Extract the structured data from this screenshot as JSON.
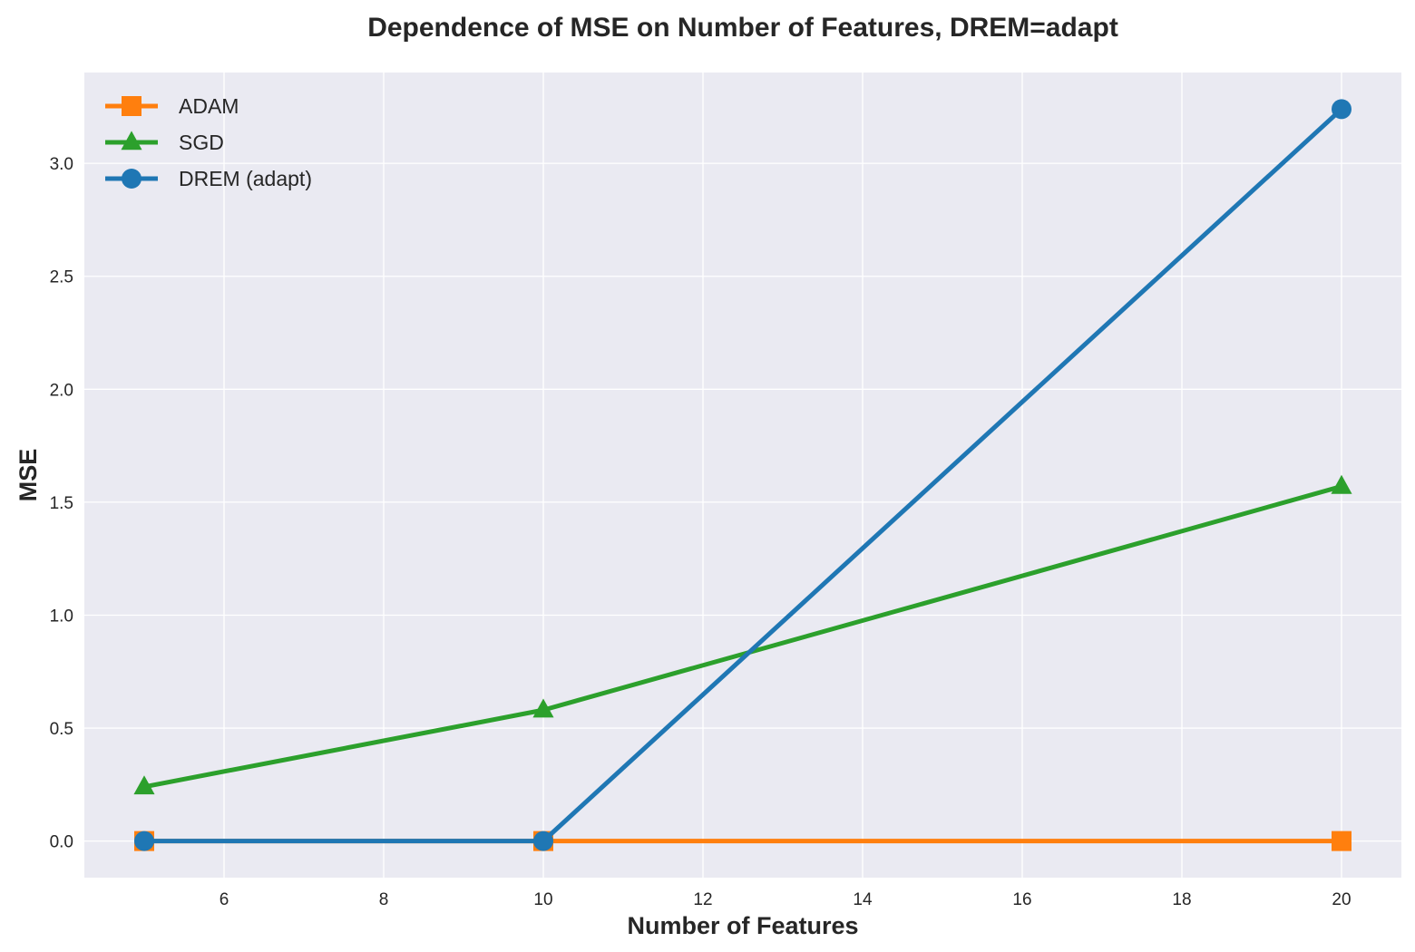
{
  "chart_data": {
    "type": "line",
    "title": "Dependence of MSE on Number of Features, DREM=adapt",
    "xlabel": "Number of Features",
    "ylabel": "MSE",
    "xlim": [
      4.25,
      20.75
    ],
    "ylim": [
      -0.162,
      3.402
    ],
    "xticks": [
      6,
      8,
      10,
      12,
      14,
      16,
      18,
      20
    ],
    "yticks": [
      0.0,
      0.5,
      1.0,
      1.5,
      2.0,
      2.5,
      3.0
    ],
    "grid": true,
    "legend_position": "upper-left",
    "x": [
      5,
      10,
      20
    ],
    "series": [
      {
        "name": "ADAM",
        "values": [
          0.0,
          0.0,
          0.0
        ],
        "color": "#ff7f0e",
        "marker": "square"
      },
      {
        "name": "SGD",
        "values": [
          0.24,
          0.58,
          1.57
        ],
        "color": "#2ca02c",
        "marker": "triangle"
      },
      {
        "name": "DREM (adapt)",
        "values": [
          0.0,
          0.0,
          3.24
        ],
        "color": "#1f77b4",
        "marker": "circle"
      }
    ],
    "colors": {
      "plot_background": "#eaeaf2",
      "grid": "#ffffff",
      "text": "#262626"
    }
  }
}
